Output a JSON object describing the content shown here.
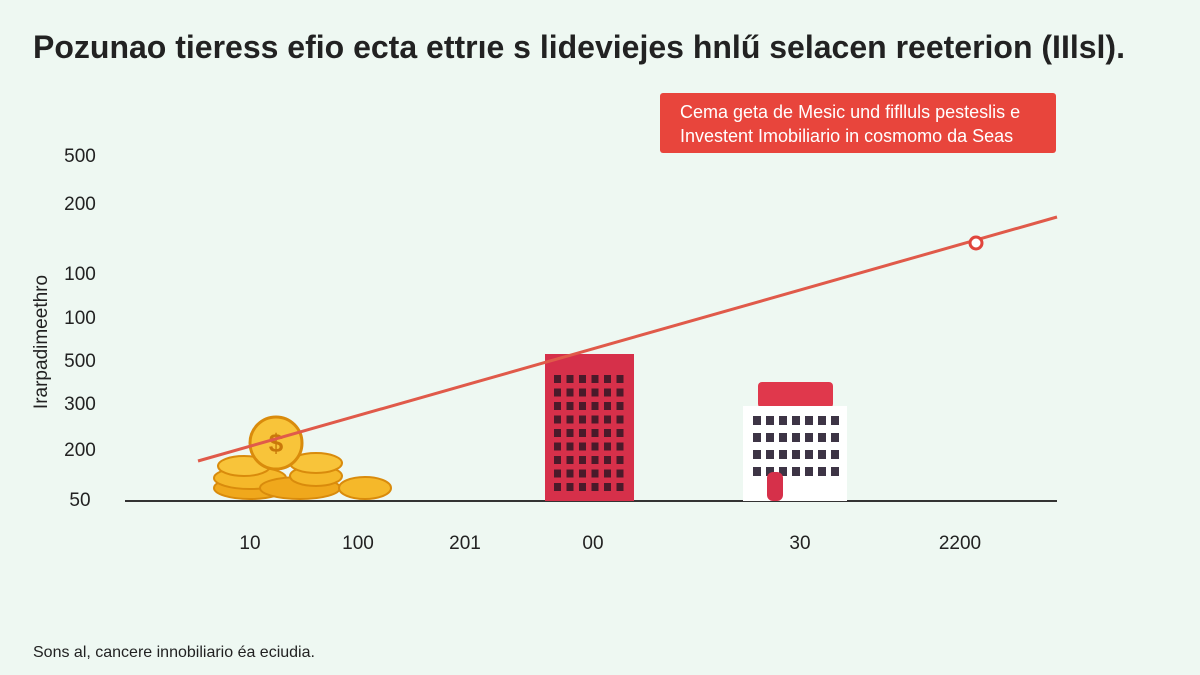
{
  "header": {
    "title": "Pozunao tieress efio ecta ettrıe s lideviejes hnlű selacen reeterion (IIlsl)."
  },
  "callout": {
    "lines": [
      "Cema geta de Mesic und fiflluls pesteslis e",
      "Investent Imobiliario in cosmomo da Seas"
    ]
  },
  "axis": {
    "y_title": "Irarpadimeethro",
    "y_labels": [
      "500",
      "200",
      "100",
      "100",
      "500",
      "300",
      "200",
      "50"
    ],
    "x_labels": [
      "10",
      "100",
      "201",
      "00",
      "30",
      "2200"
    ]
  },
  "footnote": "Sons al, cancere innobiliario éa eciudia."
}
